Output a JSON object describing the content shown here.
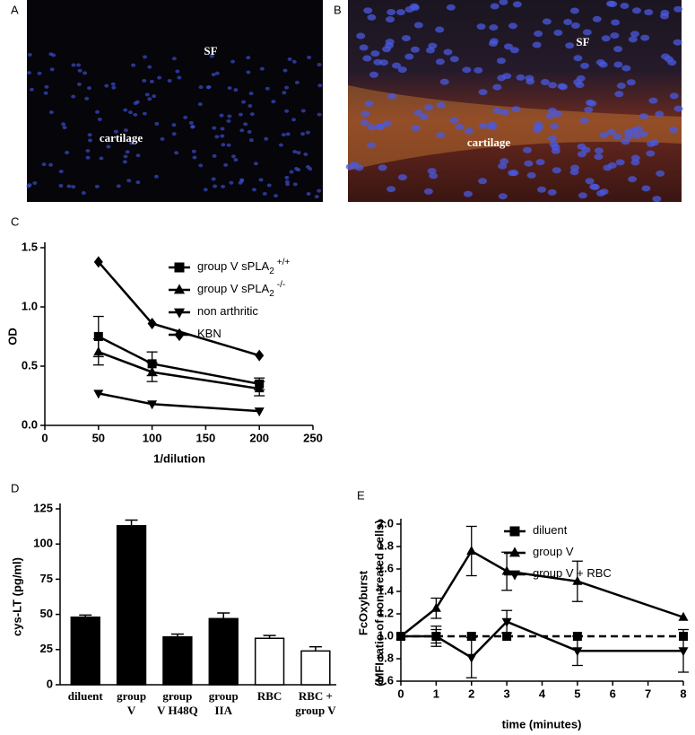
{
  "panels": [
    {
      "label": "A",
      "texts": [
        "SF",
        "cartilage"
      ]
    },
    {
      "label": "B",
      "texts": [
        "SF",
        "cartilage"
      ]
    }
  ],
  "chart_data": [
    {
      "type": "line",
      "label": "C",
      "ylabel": "OD",
      "xlabel": "1/dilution",
      "x": [
        50,
        100,
        200
      ],
      "series": [
        {
          "name": "group V sPLA",
          "subscript": "2",
          "superscript": "+/+",
          "marker": "square",
          "color": "#000000",
          "values": [
            0.75,
            0.52,
            0.35
          ],
          "errors": [
            0.17,
            0.1,
            0.05
          ]
        },
        {
          "name": "group V sPLA",
          "subscript": "2",
          "superscript": "-/-",
          "marker": "triangle",
          "color": "#000000",
          "values": [
            0.62,
            0.45,
            0.31
          ],
          "errors": [
            0.11,
            0.08,
            0.06
          ]
        },
        {
          "name": "non arthritic",
          "marker": "down-triangle",
          "color": "#000000",
          "values": [
            0.27,
            0.18,
            0.12
          ]
        },
        {
          "name": "KBN",
          "marker": "diamond",
          "color": "#000000",
          "values": [
            1.38,
            0.86,
            0.59
          ]
        }
      ],
      "xlim": [
        0,
        250
      ],
      "xticks": [
        0,
        50,
        100,
        150,
        200,
        250
      ],
      "ylim": [
        0,
        1.5
      ],
      "yticks": [
        {
          "value": 0,
          "label": "0.0"
        },
        0.5,
        {
          "value": 1,
          "label": "1.0"
        },
        1.5
      ]
    },
    {
      "type": "bar",
      "label": "D",
      "ylabel": "cys-LT (pg/ml)",
      "categories": [
        [
          "diluent"
        ],
        [
          "group",
          "V"
        ],
        [
          "group",
          "V H48Q"
        ],
        [
          "group",
          "IIA"
        ],
        [
          "RBC"
        ],
        [
          "RBC +",
          "group V"
        ]
      ],
      "values": [
        48,
        113,
        34,
        47,
        33,
        24
      ],
      "errors": [
        1.5,
        4,
        2,
        4,
        2,
        3
      ],
      "colors": [
        "#000000",
        "#000000",
        "#000000",
        "#000000",
        "#ffffff",
        "#ffffff"
      ],
      "ylim": [
        0,
        125
      ],
      "yticks": [
        0,
        25,
        50,
        75,
        100,
        125
      ]
    },
    {
      "type": "line",
      "label": "E",
      "ylabel": "FcOxyburst",
      "ylabel_sub": "(MFI ratio of non treated cells)",
      "xlabel": "time (minutes)",
      "x": [
        0,
        1,
        2,
        3,
        5,
        8
      ],
      "series": [
        {
          "name": "diluent",
          "marker": "square",
          "color": "#000000",
          "dash": true,
          "values": [
            1,
            1,
            1,
            1,
            1,
            1
          ],
          "errors": [
            0,
            0.09,
            0,
            0,
            0,
            0
          ]
        },
        {
          "name": "group V",
          "marker": "triangle",
          "color": "#000000",
          "values": [
            1,
            1.25,
            1.76,
            1.58,
            1.49,
            1.17
          ],
          "errors": [
            0,
            0.09,
            0.22,
            0.17,
            0.18,
            0
          ]
        },
        {
          "name": "group V + RBC",
          "marker": "down-triangle",
          "color": "#000000",
          "values": [
            1,
            1,
            0.81,
            1.13,
            0.87,
            0.87
          ],
          "errors": [
            0,
            0.06,
            0.18,
            0.1,
            0.13,
            0.19
          ]
        }
      ],
      "xlim": [
        0,
        8
      ],
      "xticks": [
        0,
        1,
        2,
        3,
        4,
        5,
        6,
        7,
        8
      ],
      "ylim": [
        0.6,
        2.0
      ],
      "yticks": [
        0.6,
        0.8,
        {
          "value": 1,
          "label": "1.0"
        },
        1.2,
        1.4,
        1.6,
        1.8,
        {
          "value": 2,
          "label": "2.0"
        }
      ]
    }
  ]
}
